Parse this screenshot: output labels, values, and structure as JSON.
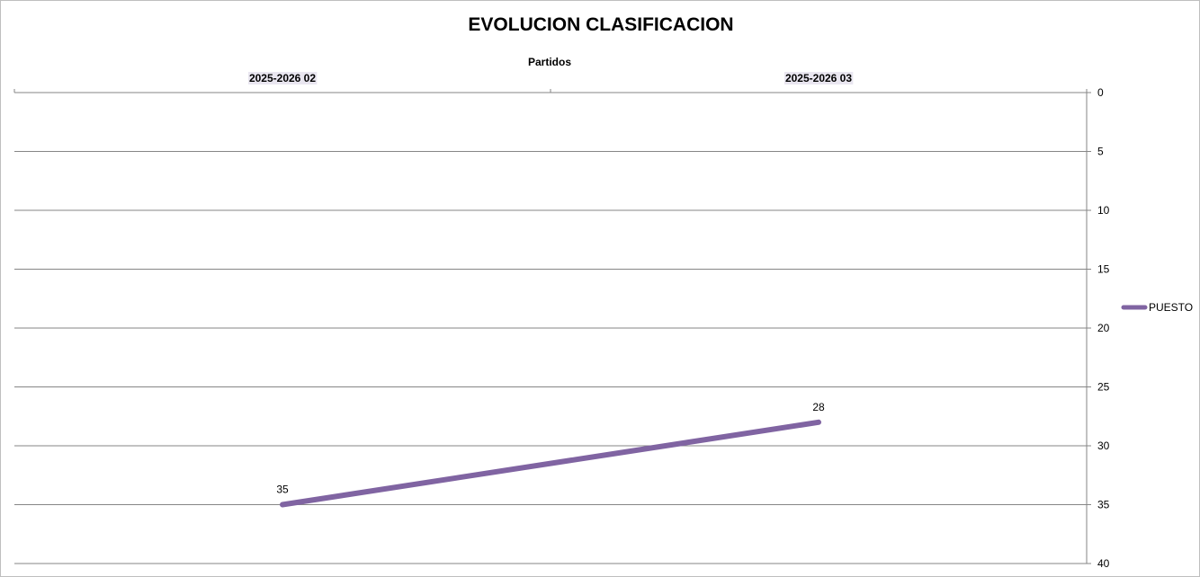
{
  "chart_data": {
    "type": "line",
    "title": "EVOLUCION CLASIFICACION",
    "xlabel": "Partidos",
    "ylabel": "",
    "categories": [
      "2025-2026 02",
      "2025-2026 03"
    ],
    "series": [
      {
        "name": "PUESTO",
        "values": [
          35,
          28
        ],
        "color": "#8064a2"
      }
    ],
    "ylim": [
      0,
      40
    ],
    "yticks": [
      0,
      5,
      10,
      15,
      20,
      25,
      30,
      35,
      40
    ],
    "y_reversed": true,
    "y_axis_position": "right",
    "x_axis_position": "top",
    "grid": true,
    "legend": "right",
    "data_labels": true
  }
}
